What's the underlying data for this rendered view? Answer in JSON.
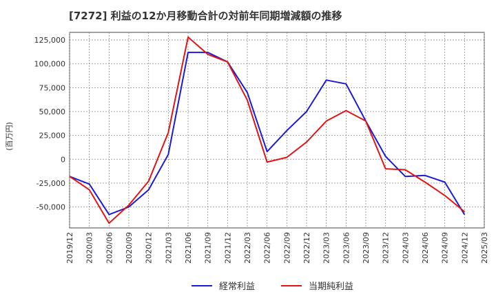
{
  "chart_data": {
    "type": "line",
    "title": "[7272]  利益の12か月移動合計の対前年同期増減額の推移",
    "ylabel": "(百万円)",
    "xlabel": "",
    "ylim": [
      -72000,
      133000
    ],
    "yticks": [
      125000,
      100000,
      75000,
      50000,
      25000,
      0,
      -25000,
      -50000
    ],
    "ytick_labels": [
      "125,000",
      "100,000",
      "75,000",
      "50,000",
      "25,000",
      "0",
      "-25,000",
      "-50,000"
    ],
    "categories": [
      "2019/12",
      "2020/03",
      "2020/06",
      "2020/09",
      "2020/12",
      "2021/03",
      "2021/06",
      "2021/09",
      "2021/12",
      "2022/03",
      "2022/06",
      "2022/09",
      "2022/12",
      "2023/03",
      "2023/06",
      "2023/09",
      "2023/12",
      "2024/03",
      "2024/06",
      "2024/09",
      "2024/12",
      "2025/03"
    ],
    "grid": true,
    "legend_position": "bottom",
    "series": [
      {
        "name": "経常利益",
        "color": "#1a1ad6",
        "values": [
          -18000,
          -26000,
          -58000,
          -50000,
          -32000,
          5000,
          112000,
          112000,
          102000,
          70000,
          8000,
          30000,
          50000,
          83000,
          79000,
          40000,
          3000,
          -18000,
          -17000,
          -24000,
          -58000,
          null
        ]
      },
      {
        "name": "当期純利益",
        "color": "#e01414",
        "values": [
          -18000,
          -32000,
          -67000,
          -48000,
          -23000,
          28000,
          128000,
          110000,
          102000,
          62000,
          -3000,
          2000,
          18000,
          40000,
          51000,
          40000,
          -10000,
          -11000,
          -24000,
          -38000,
          -55000,
          null
        ]
      }
    ]
  }
}
